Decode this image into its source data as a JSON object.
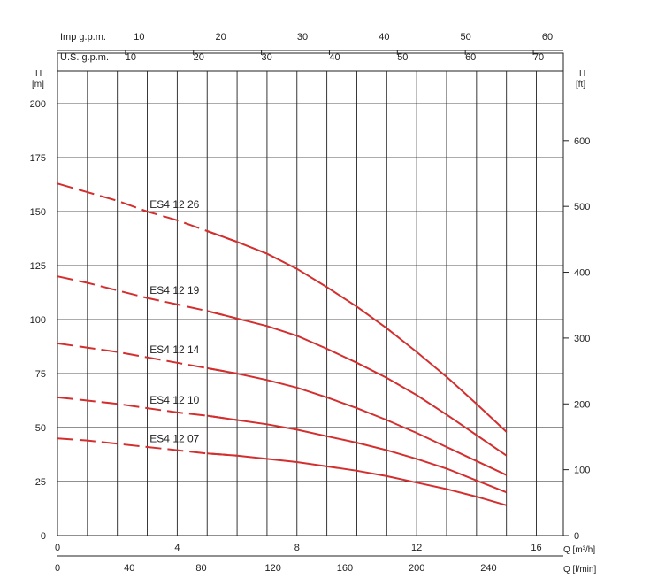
{
  "chart_data": {
    "type": "line",
    "title": "",
    "y_left": {
      "label": "H",
      "unit": "[m]",
      "ticks": [
        "0",
        "25",
        "50",
        "75",
        "100",
        "125",
        "150",
        "175",
        "200"
      ],
      "range": [
        0,
        216
      ]
    },
    "y_right": {
      "label": "H",
      "unit": "[ft]",
      "ticks": [
        "0",
        "100",
        "200",
        "300",
        "400",
        "500",
        "600"
      ]
    },
    "x_bottom": {
      "primary": {
        "label": "Q [m³/h]",
        "ticks": [
          "0",
          "4",
          "8",
          "12",
          "16"
        ],
        "range": [
          0,
          16.9
        ]
      },
      "secondary": {
        "label": "Q [l/min]",
        "ticks": [
          "0",
          "40",
          "80",
          "120",
          "160",
          "200",
          "240"
        ]
      }
    },
    "x_top": {
      "us_gpm": {
        "label": "U.S. g.p.m.",
        "ticks": [
          "10",
          "20",
          "30",
          "40",
          "50",
          "60",
          "70"
        ]
      },
      "imp_gpm": {
        "label": "Imp g.p.m.",
        "ticks": [
          "10",
          "20",
          "30",
          "40",
          "50",
          "60"
        ]
      }
    },
    "grid": true,
    "series": [
      {
        "name": "ES4 12 26",
        "dashed_until": 5.5,
        "points": [
          [
            0,
            163
          ],
          [
            1,
            159
          ],
          [
            2,
            155
          ],
          [
            3,
            150
          ],
          [
            4,
            146
          ],
          [
            5,
            141
          ],
          [
            6,
            136
          ],
          [
            7,
            130.5
          ],
          [
            8,
            123.5
          ],
          [
            9,
            115
          ],
          [
            10,
            106
          ],
          [
            11,
            96
          ],
          [
            12,
            85
          ],
          [
            13,
            73.5
          ],
          [
            14,
            61
          ],
          [
            15,
            48
          ]
        ]
      },
      {
        "name": "ES4 12 19",
        "dashed_until": 5.5,
        "points": [
          [
            0,
            120
          ],
          [
            1,
            117
          ],
          [
            2,
            113.5
          ],
          [
            3,
            110
          ],
          [
            4,
            107
          ],
          [
            5,
            104
          ],
          [
            6,
            100.5
          ],
          [
            7,
            97
          ],
          [
            8,
            92.5
          ],
          [
            9,
            86.5
          ],
          [
            10,
            80
          ],
          [
            11,
            73
          ],
          [
            12,
            65
          ],
          [
            13,
            56
          ],
          [
            14,
            46.5
          ],
          [
            15,
            37
          ]
        ]
      },
      {
        "name": "ES4 12 14",
        "dashed_until": 5.5,
        "points": [
          [
            0,
            89
          ],
          [
            1,
            87
          ],
          [
            2,
            85
          ],
          [
            3,
            82.5
          ],
          [
            4,
            80
          ],
          [
            5,
            77.5
          ],
          [
            6,
            75
          ],
          [
            7,
            72
          ],
          [
            8,
            68.5
          ],
          [
            9,
            64
          ],
          [
            10,
            59
          ],
          [
            11,
            53.5
          ],
          [
            12,
            47.5
          ],
          [
            13,
            41
          ],
          [
            14,
            34.5
          ],
          [
            15,
            28
          ]
        ]
      },
      {
        "name": "ES4 12 10",
        "dashed_until": 5.5,
        "points": [
          [
            0,
            64
          ],
          [
            1,
            62.5
          ],
          [
            2,
            61
          ],
          [
            3,
            59
          ],
          [
            4,
            57
          ],
          [
            5,
            55.5
          ],
          [
            6,
            53.5
          ],
          [
            7,
            51.5
          ],
          [
            8,
            49
          ],
          [
            9,
            46
          ],
          [
            10,
            43
          ],
          [
            11,
            39.5
          ],
          [
            12,
            35.5
          ],
          [
            13,
            31
          ],
          [
            14,
            25.5
          ],
          [
            15,
            20
          ]
        ]
      },
      {
        "name": "ES4 12 07",
        "dashed_until": 5.5,
        "points": [
          [
            0,
            45
          ],
          [
            1,
            44
          ],
          [
            2,
            42.5
          ],
          [
            3,
            41
          ],
          [
            4,
            39.5
          ],
          [
            5,
            38
          ],
          [
            6,
            37
          ],
          [
            7,
            35.5
          ],
          [
            8,
            34
          ],
          [
            9,
            32
          ],
          [
            10,
            30
          ],
          [
            11,
            27.5
          ],
          [
            12,
            24.5
          ],
          [
            13,
            21.5
          ],
          [
            14,
            18
          ],
          [
            15,
            14
          ]
        ]
      }
    ],
    "line_color": "#d32f2f",
    "grid_color": "#222222"
  }
}
